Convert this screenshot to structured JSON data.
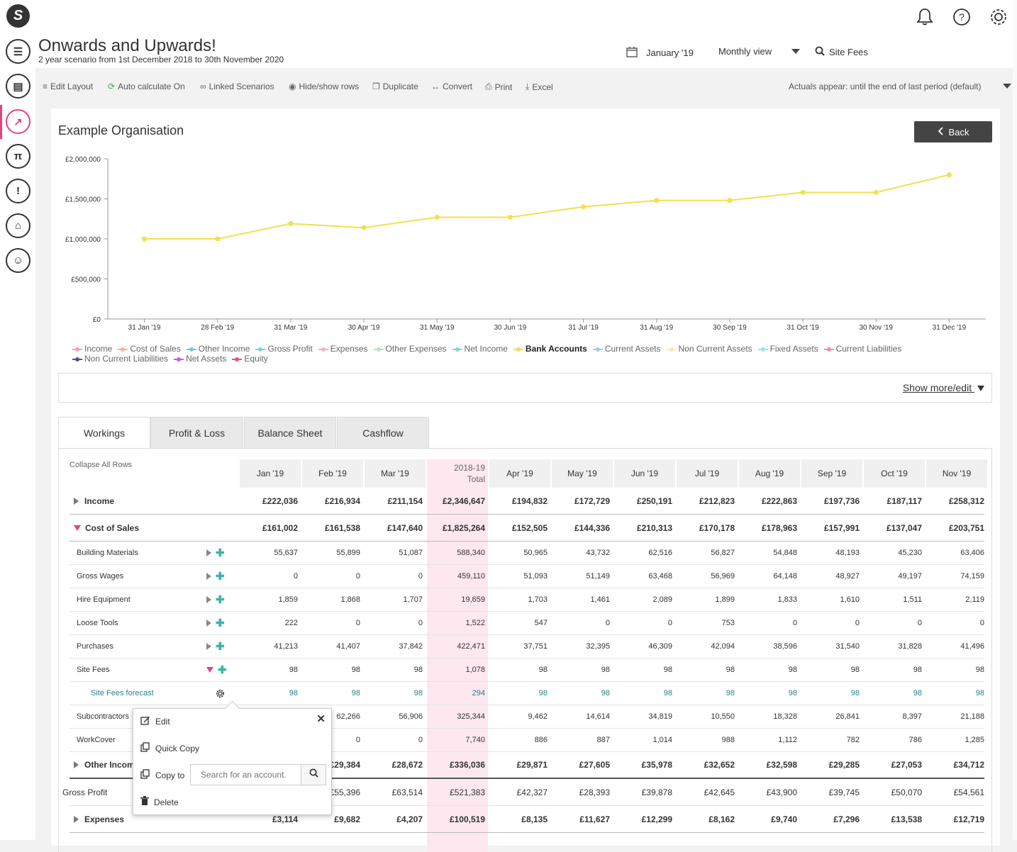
{
  "app": {
    "title": "Onwards and Upwards!",
    "subtitle": "2 year scenario from 1st December 2018 to 30th November 2020",
    "logo_icon": "logo-icon"
  },
  "header": {
    "period": "January '19",
    "view": "Monthly view",
    "search_value": "Site Fees",
    "icons": [
      "bell-icon",
      "help-icon",
      "gear-icon"
    ]
  },
  "sidebar": {
    "items": [
      {
        "name": "sliders-icon",
        "glyph": "☰"
      },
      {
        "name": "pdf-icon",
        "glyph": "▤"
      },
      {
        "name": "trend-icon",
        "glyph": "↗",
        "active": true
      },
      {
        "name": "pi-icon",
        "glyph": "π"
      },
      {
        "name": "alert-icon",
        "glyph": "!"
      },
      {
        "name": "bank-icon",
        "glyph": "⌂"
      },
      {
        "name": "user-icon",
        "glyph": "☺"
      }
    ]
  },
  "toolbar": {
    "edit_layout": "Edit Layout",
    "auto_calc": "Auto calculate On",
    "linked": "Linked Scenarios",
    "hide_show": "Hide/show rows",
    "duplicate": "Duplicate",
    "convert": "Convert",
    "print": "Print",
    "excel": "Excel",
    "actuals": "Actuals appear: until the end of last period (default)"
  },
  "panel": {
    "org_name": "Example Organisation",
    "back_label": "Back",
    "show_more": "Show more/edit"
  },
  "chart_data": {
    "type": "line",
    "title": "",
    "xlabel": "",
    "ylabel": "",
    "x": [
      "31 Jan '19",
      "28 Feb '19",
      "31 Mar '19",
      "30 Apr '19",
      "31 May '19",
      "30 Jun '19",
      "31 Jul '19",
      "31 Aug '19",
      "30 Sep '19",
      "31 Oct '19",
      "30 Nov '19",
      "31 Dec '19"
    ],
    "ylim": [
      0,
      2000000
    ],
    "yticks": [
      "£0",
      "£500,000",
      "£1,000,000",
      "£1,500,000",
      "£2,000,000"
    ],
    "grid": false,
    "legend_position": "bottom",
    "series": [
      {
        "name": "Bank Accounts",
        "color": "#f2e04a",
        "values": [
          1000000,
          1000000,
          1190000,
          1140000,
          1270000,
          1270000,
          1400000,
          1480000,
          1480000,
          1580000,
          1580000,
          1800000
        ]
      }
    ],
    "legend": [
      {
        "label": "Income",
        "color": "#f4a0b5"
      },
      {
        "label": "Cost of Sales",
        "color": "#f4b0a0"
      },
      {
        "label": "Other Income",
        "color": "#7fc4d8"
      },
      {
        "label": "Gross Profit",
        "color": "#7ad8d0"
      },
      {
        "label": "Expenses",
        "color": "#f7b0c8"
      },
      {
        "label": "Other Expenses",
        "color": "#b8e0c0"
      },
      {
        "label": "Net Income",
        "color": "#8fcfcf"
      },
      {
        "label": "Bank Accounts",
        "color": "#f2e04a",
        "selected": true
      },
      {
        "label": "Current Assets",
        "color": "#a8c8e8"
      },
      {
        "label": "Non Current Assets",
        "color": "#f8eab0"
      },
      {
        "label": "Fixed Assets",
        "color": "#90e8e8"
      },
      {
        "label": "Current Liabilities",
        "color": "#f08ca8"
      },
      {
        "label": "Non Current Liabilities",
        "color": "#5a4e9a"
      },
      {
        "label": "Net Assets",
        "color": "#c85ed8"
      },
      {
        "label": "Equity",
        "color": "#e8508c"
      }
    ]
  },
  "tabs": [
    "Workings",
    "Profit & Loss",
    "Balance Sheet",
    "Cashflow"
  ],
  "grid": {
    "collapse_all": "Collapse All Rows",
    "columns": [
      "Jan '19",
      "Feb '19",
      "Mar '19",
      "2018-19\nTotal",
      "Apr '19",
      "May '19",
      "Jun '19",
      "Jul '19",
      "Aug '19",
      "Sep '19",
      "Oct '19",
      "Nov '19"
    ],
    "rows": [
      {
        "label": "Income",
        "kind": "major",
        "toggle": "right",
        "values": [
          "£222,036",
          "£216,934",
          "£211,154",
          "£2,346,647",
          "£194,832",
          "£172,729",
          "£250,191",
          "£212,823",
          "£222,863",
          "£197,736",
          "£187,117",
          "£258,312"
        ]
      },
      {
        "label": "Cost of Sales",
        "kind": "major",
        "toggle": "down",
        "values": [
          "£161,002",
          "£161,538",
          "£147,640",
          "£1,825,264",
          "£152,505",
          "£144,336",
          "£210,313",
          "£170,178",
          "£178,963",
          "£157,991",
          "£137,047",
          "£203,751"
        ]
      },
      {
        "label": "Building Materials",
        "kind": "sub",
        "values": [
          "55,637",
          "55,899",
          "51,087",
          "588,340",
          "50,965",
          "43,732",
          "62,516",
          "56,827",
          "54,848",
          "48,193",
          "45,230",
          "63,406"
        ]
      },
      {
        "label": "Gross Wages",
        "kind": "sub",
        "values": [
          "0",
          "0",
          "0",
          "459,110",
          "51,093",
          "51,149",
          "63,468",
          "56,969",
          "64,148",
          "48,927",
          "49,197",
          "74,159"
        ]
      },
      {
        "label": "Hire Equipment",
        "kind": "sub",
        "values": [
          "1,859",
          "1,868",
          "1,707",
          "19,659",
          "1,703",
          "1,461",
          "2,089",
          "1,899",
          "1,833",
          "1,610",
          "1,511",
          "2,119"
        ]
      },
      {
        "label": "Loose Tools",
        "kind": "sub",
        "values": [
          "222",
          "0",
          "0",
          "1,522",
          "547",
          "0",
          "0",
          "753",
          "0",
          "0",
          "0",
          "0"
        ]
      },
      {
        "label": "Purchases",
        "kind": "sub",
        "values": [
          "41,213",
          "41,407",
          "37,842",
          "422,471",
          "37,751",
          "32,395",
          "46,309",
          "42,094",
          "38,596",
          "31,540",
          "31,828",
          "41,496"
        ]
      },
      {
        "label": "Site Fees",
        "kind": "sub-open",
        "values": [
          "98",
          "98",
          "98",
          "1,078",
          "98",
          "98",
          "98",
          "98",
          "98",
          "98",
          "98",
          "98"
        ]
      },
      {
        "label": "Site Fees forecast",
        "kind": "forecast",
        "values": [
          "98",
          "98",
          "98",
          "294",
          "98",
          "98",
          "98",
          "98",
          "98",
          "98",
          "98",
          "98"
        ]
      },
      {
        "label": "Subcontractors",
        "kind": "sub",
        "values": [
          "",
          "62,266",
          "56,906",
          "325,344",
          "9,462",
          "14,614",
          "34,819",
          "10,550",
          "18,328",
          "26,841",
          "8,397",
          "21,188"
        ]
      },
      {
        "label": "WorkCover",
        "kind": "sub",
        "values": [
          "",
          "0",
          "0",
          "7,740",
          "886",
          "887",
          "1,014",
          "988",
          "1,112",
          "782",
          "786",
          "1,285"
        ]
      },
      {
        "label": "Other Income",
        "kind": "major",
        "toggle": "right",
        "values": [
          "",
          "£29,384",
          "£28,672",
          "£336,036",
          "£29,871",
          "£27,605",
          "£35,978",
          "£32,652",
          "£32,598",
          "£29,285",
          "£27,053",
          "£34,712"
        ]
      },
      {
        "label": "Gross Profit",
        "kind": "plain",
        "values": [
          "",
          "£55,396",
          "£63,514",
          "£521,383",
          "£42,327",
          "£28,393",
          "£39,878",
          "£42,645",
          "£43,900",
          "£39,745",
          "£50,070",
          "£54,561"
        ]
      },
      {
        "label": "Expenses",
        "kind": "major",
        "toggle": "right",
        "values": [
          "£3,114",
          "£9,682",
          "£4,207",
          "£100,519",
          "£8,135",
          "£11,627",
          "£12,299",
          "£8,162",
          "£9,740",
          "£7,296",
          "£13,538",
          "£12,719"
        ]
      }
    ]
  },
  "popup": {
    "edit": "Edit",
    "quick_copy": "Quick Copy",
    "copy_to": "Copy to",
    "search_placeholder": "Search for an account.",
    "delete": "Delete"
  }
}
